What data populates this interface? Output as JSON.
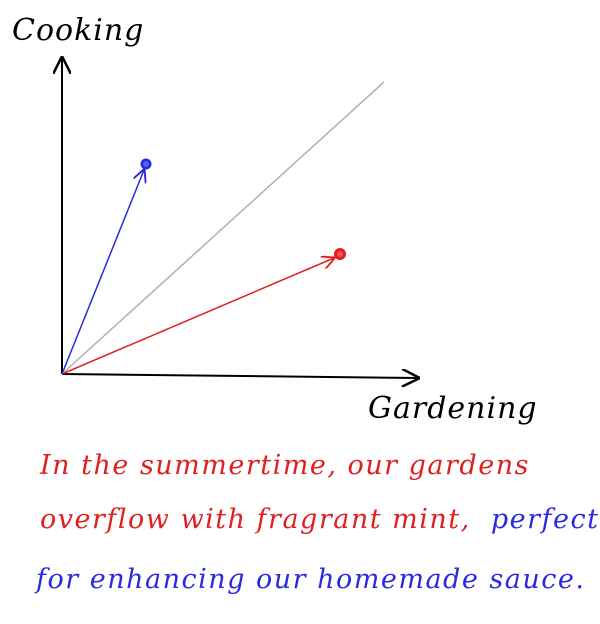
{
  "axes": {
    "y_label": "Cooking",
    "x_label": "Gardening"
  },
  "caption": {
    "line1": "In the summertime, our gardens",
    "line2_red": "overflow with fragrant mint,",
    "line2_blue": "perfect",
    "line3": "for enhancing our homemade sauce."
  },
  "colors": {
    "axis": "#000000",
    "diagonal": "#b0b0b0",
    "blue": "#2a2ae0",
    "red": "#e02020"
  }
}
